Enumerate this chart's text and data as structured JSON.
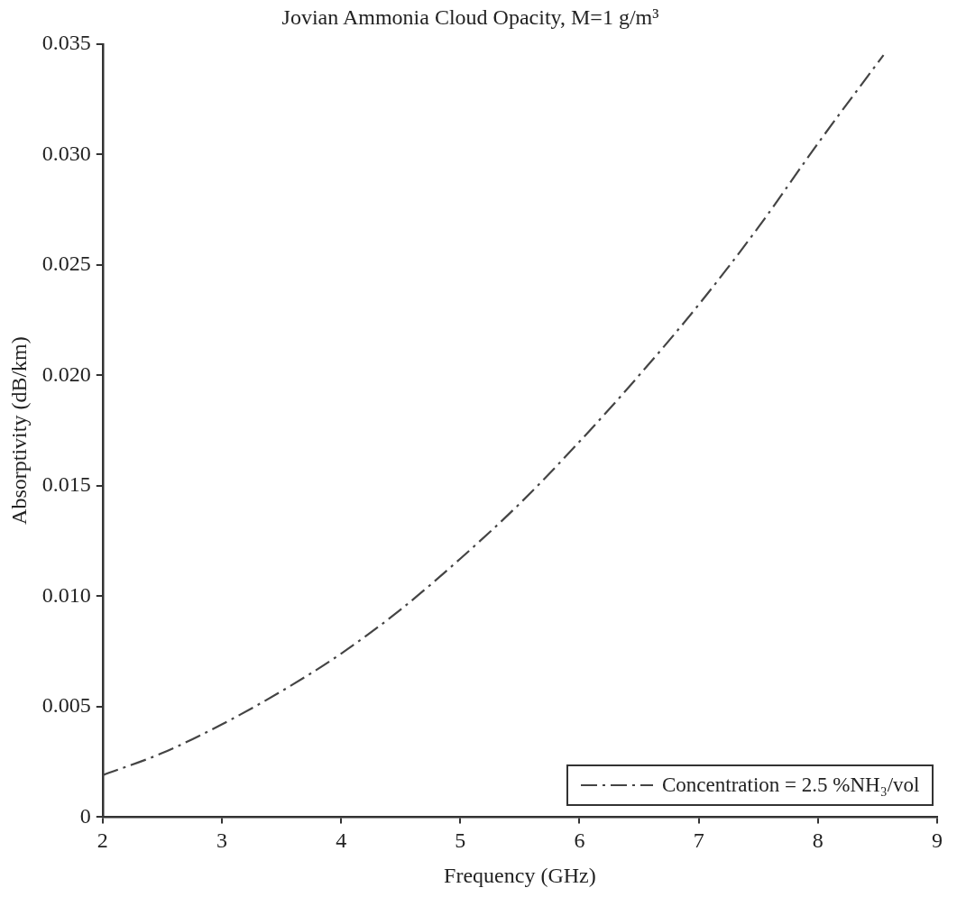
{
  "chart_data": {
    "type": "line",
    "title": "Jovian Ammonia Cloud Opacity, M=1 g/m³",
    "xlabel": "Frequency (GHz)",
    "ylabel": "Absorptivity (dB/km)",
    "x": [
      2,
      2.5,
      3,
      3.5,
      4,
      4.5,
      5,
      5.5,
      6,
      6.5,
      7,
      7.5,
      8,
      8.55
    ],
    "series": [
      {
        "name": "Concentration = 2.5 %NH₃/vol",
        "color": "#444444",
        "values": [
          0.0019,
          0.0029,
          0.0042,
          0.0057,
          0.0074,
          0.0094,
          0.0117,
          0.0142,
          0.017,
          0.02,
          0.0232,
          0.0267,
          0.0305,
          0.0345
        ]
      }
    ],
    "xlim": [
      2,
      9
    ],
    "xticks": [
      2,
      3,
      4,
      5,
      6,
      7,
      8,
      9
    ],
    "ylim": [
      0,
      0.035
    ],
    "yticks": [
      {
        "value": 0,
        "label": "0"
      },
      {
        "value": 0.005,
        "label": "0.005"
      },
      {
        "value": 0.01,
        "label": "0.010"
      },
      {
        "value": 0.015,
        "label": "0.015"
      },
      {
        "value": 0.02,
        "label": "0.020"
      },
      {
        "value": 0.025,
        "label": "0.025"
      },
      {
        "value": 0.03,
        "label": "0.030"
      },
      {
        "value": 0.035,
        "label": "0.035"
      }
    ],
    "grid": false,
    "legend": "bottom right",
    "marker": "none",
    "line_style": "dashed"
  }
}
